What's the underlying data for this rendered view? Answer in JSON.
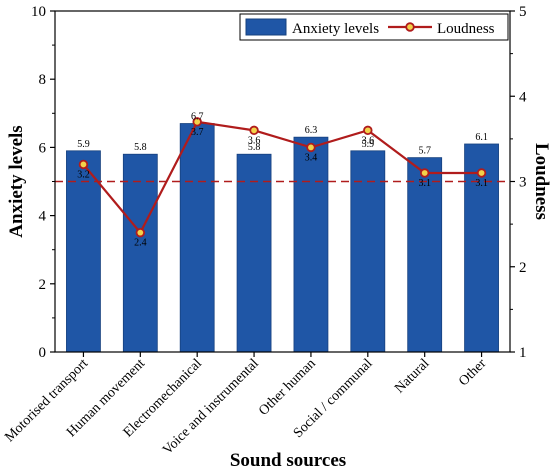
{
  "chart_data": {
    "type": "bar",
    "xlabel": "Sound sources",
    "ylabel": "Anxiety levels",
    "y2label": "Loudness",
    "categories": [
      "Motorised transport",
      "Human movement",
      "Electromechanical",
      "Voice and instrumental",
      "Other human",
      "Social / communal",
      "Natural",
      "Other"
    ],
    "ylim": [
      0,
      10
    ],
    "y2lim": [
      1,
      5
    ],
    "yticks": [
      0,
      2,
      4,
      6,
      8,
      10
    ],
    "y2ticks": [
      1,
      2,
      3,
      4,
      5
    ],
    "reference_line": {
      "axis": "y2",
      "value": 3,
      "style": "dashed"
    },
    "legend": "top-right",
    "series": [
      {
        "name": "Anxiety levels",
        "type": "bar",
        "axis": "y",
        "color": "#1f56a6",
        "values": [
          5.9,
          5.8,
          6.7,
          5.8,
          6.3,
          5.9,
          5.7,
          6.1
        ],
        "labels": [
          "5.9",
          "5.8",
          "6.7",
          "5.8",
          "6.3",
          "5.9",
          "5.7",
          "6.1"
        ]
      },
      {
        "name": "Loudness",
        "type": "line",
        "axis": "y2",
        "color": "#b01c1c",
        "values": [
          3.2,
          2.4,
          3.7,
          3.6,
          3.4,
          3.6,
          3.1,
          3.1
        ],
        "labels": [
          "3.2",
          "2.4",
          "3.7",
          "3.6",
          "3.4",
          "3.6",
          "3.1",
          "3.1"
        ]
      }
    ]
  }
}
